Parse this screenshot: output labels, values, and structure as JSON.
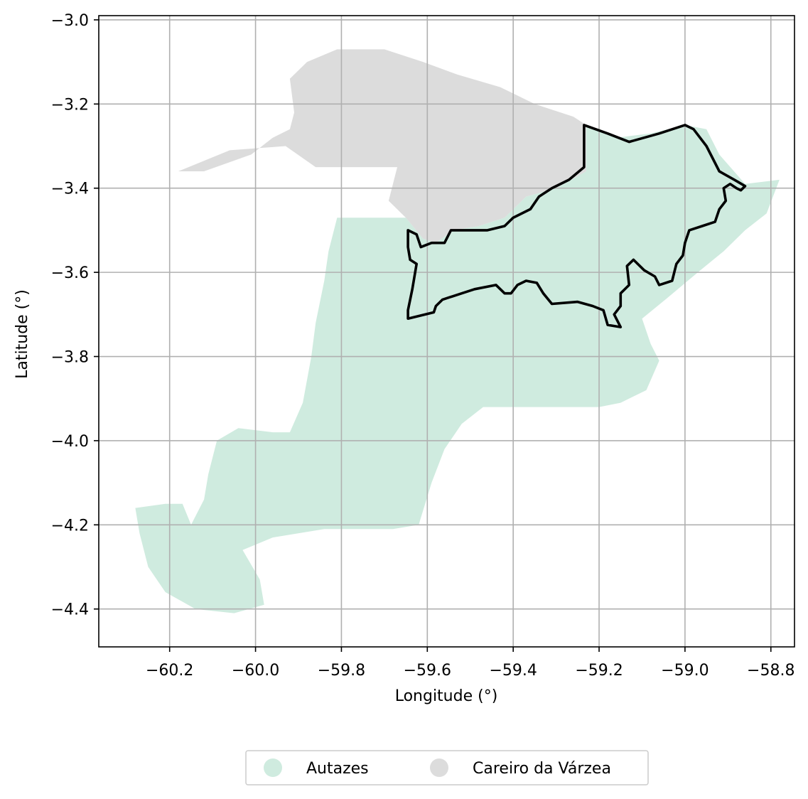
{
  "chart_data": {
    "type": "map",
    "xlabel": "Longitude (°)",
    "ylabel": "Latitude (°)",
    "xlim": [
      -60.365,
      -58.745
    ],
    "ylim": [
      -4.49,
      -2.99
    ],
    "xticks": [
      -60.2,
      -60.0,
      -59.8,
      -59.6,
      -59.4,
      -59.2,
      -59.0,
      -58.8
    ],
    "yticks": [
      -3.0,
      -3.2,
      -3.4,
      -3.6,
      -3.8,
      -4.0,
      -4.2,
      -4.4
    ],
    "xtick_labels": [
      "−60.2",
      "−60.0",
      "−59.8",
      "−59.6",
      "−59.4",
      "−59.2",
      "−59.0",
      "−58.8"
    ],
    "ytick_labels": [
      "−3.0",
      "−3.2",
      "−3.4",
      "−3.6",
      "−3.8",
      "−4.0",
      "−4.2",
      "−4.4"
    ],
    "grid": true,
    "legend_position": "bottom-center",
    "regions": [
      {
        "name": "Autazes",
        "color": "#cfebdf",
        "coords": [
          [
            -59.65,
            -3.47
          ],
          [
            -59.61,
            -3.52
          ],
          [
            -59.58,
            -3.53
          ],
          [
            -59.54,
            -3.5
          ],
          [
            -59.48,
            -3.49
          ],
          [
            -59.42,
            -3.47
          ],
          [
            -59.37,
            -3.42
          ],
          [
            -59.3,
            -3.4
          ],
          [
            -59.23,
            -3.36
          ],
          [
            -59.23,
            -3.25
          ],
          [
            -59.16,
            -3.28
          ],
          [
            -59.08,
            -3.27
          ],
          [
            -59.0,
            -3.25
          ],
          [
            -58.95,
            -3.26
          ],
          [
            -58.92,
            -3.32
          ],
          [
            -58.86,
            -3.39
          ],
          [
            -58.78,
            -3.38
          ],
          [
            -58.81,
            -3.46
          ],
          [
            -58.86,
            -3.5
          ],
          [
            -58.91,
            -3.55
          ],
          [
            -58.97,
            -3.6
          ],
          [
            -59.04,
            -3.66
          ],
          [
            -59.1,
            -3.71
          ],
          [
            -59.08,
            -3.77
          ],
          [
            -59.06,
            -3.81
          ],
          [
            -59.09,
            -3.88
          ],
          [
            -59.15,
            -3.91
          ],
          [
            -59.2,
            -3.92
          ],
          [
            -59.34,
            -3.92
          ],
          [
            -59.47,
            -3.92
          ],
          [
            -59.52,
            -3.96
          ],
          [
            -59.56,
            -4.02
          ],
          [
            -59.59,
            -4.1
          ],
          [
            -59.62,
            -4.2
          ],
          [
            -59.68,
            -4.21
          ],
          [
            -59.84,
            -4.21
          ],
          [
            -59.96,
            -4.23
          ],
          [
            -60.03,
            -4.26
          ],
          [
            -59.99,
            -4.33
          ],
          [
            -59.98,
            -4.39
          ],
          [
            -60.05,
            -4.41
          ],
          [
            -60.14,
            -4.4
          ],
          [
            -60.21,
            -4.36
          ],
          [
            -60.25,
            -4.3
          ],
          [
            -60.27,
            -4.22
          ],
          [
            -60.28,
            -4.16
          ],
          [
            -60.21,
            -4.15
          ],
          [
            -60.17,
            -4.15
          ],
          [
            -60.15,
            -4.2
          ],
          [
            -60.12,
            -4.14
          ],
          [
            -60.11,
            -4.08
          ],
          [
            -60.09,
            -4.0
          ],
          [
            -60.04,
            -3.97
          ],
          [
            -59.96,
            -3.98
          ],
          [
            -59.92,
            -3.98
          ],
          [
            -59.89,
            -3.91
          ],
          [
            -59.87,
            -3.8
          ],
          [
            -59.86,
            -3.72
          ],
          [
            -59.84,
            -3.62
          ],
          [
            -59.83,
            -3.55
          ],
          [
            -59.81,
            -3.47
          ],
          [
            -59.72,
            -3.47
          ]
        ]
      },
      {
        "name": "Careiro da Várzea",
        "color": "#dcdcdc",
        "coords": [
          [
            -60.18,
            -3.36
          ],
          [
            -60.12,
            -3.36
          ],
          [
            -60.01,
            -3.32
          ],
          [
            -59.96,
            -3.28
          ],
          [
            -59.92,
            -3.26
          ],
          [
            -59.91,
            -3.22
          ],
          [
            -59.92,
            -3.14
          ],
          [
            -59.88,
            -3.1
          ],
          [
            -59.81,
            -3.07
          ],
          [
            -59.7,
            -3.07
          ],
          [
            -59.61,
            -3.1
          ],
          [
            -59.53,
            -3.13
          ],
          [
            -59.43,
            -3.16
          ],
          [
            -59.35,
            -3.2
          ],
          [
            -59.26,
            -3.23
          ],
          [
            -59.23,
            -3.25
          ],
          [
            -59.23,
            -3.36
          ],
          [
            -59.3,
            -3.4
          ],
          [
            -59.37,
            -3.42
          ],
          [
            -59.42,
            -3.47
          ],
          [
            -59.48,
            -3.49
          ],
          [
            -59.54,
            -3.5
          ],
          [
            -59.58,
            -3.53
          ],
          [
            -59.61,
            -3.52
          ],
          [
            -59.65,
            -3.47
          ],
          [
            -59.69,
            -3.43
          ],
          [
            -59.67,
            -3.35
          ],
          [
            -59.74,
            -3.35
          ],
          [
            -59.86,
            -3.35
          ],
          [
            -59.93,
            -3.3
          ],
          [
            -60.06,
            -3.31
          ]
        ]
      }
    ],
    "highlight_outline": {
      "color": "#000000",
      "coords": [
        [
          -59.645,
          -3.5
        ],
        [
          -59.625,
          -3.51
        ],
        [
          -59.615,
          -3.54
        ],
        [
          -59.59,
          -3.53
        ],
        [
          -59.56,
          -3.53
        ],
        [
          -59.545,
          -3.5
        ],
        [
          -59.5,
          -3.5
        ],
        [
          -59.46,
          -3.5
        ],
        [
          -59.42,
          -3.49
        ],
        [
          -59.4,
          -3.47
        ],
        [
          -59.36,
          -3.45
        ],
        [
          -59.34,
          -3.42
        ],
        [
          -59.31,
          -3.4
        ],
        [
          -59.27,
          -3.38
        ],
        [
          -59.235,
          -3.35
        ],
        [
          -59.235,
          -3.25
        ],
        [
          -59.18,
          -3.27
        ],
        [
          -59.13,
          -3.29
        ],
        [
          -59.06,
          -3.27
        ],
        [
          -59.0,
          -3.25
        ],
        [
          -58.98,
          -3.26
        ],
        [
          -58.95,
          -3.3
        ],
        [
          -58.92,
          -3.36
        ],
        [
          -58.885,
          -3.38
        ],
        [
          -58.86,
          -3.395
        ],
        [
          -58.87,
          -3.405
        ],
        [
          -58.88,
          -3.4
        ],
        [
          -58.895,
          -3.39
        ],
        [
          -58.91,
          -3.4
        ],
        [
          -58.905,
          -3.43
        ],
        [
          -58.92,
          -3.45
        ],
        [
          -58.93,
          -3.48
        ],
        [
          -58.96,
          -3.49
        ],
        [
          -58.99,
          -3.5
        ],
        [
          -59.0,
          -3.53
        ],
        [
          -59.005,
          -3.56
        ],
        [
          -59.02,
          -3.58
        ],
        [
          -59.03,
          -3.62
        ],
        [
          -59.06,
          -3.63
        ],
        [
          -59.07,
          -3.61
        ],
        [
          -59.095,
          -3.595
        ],
        [
          -59.12,
          -3.57
        ],
        [
          -59.135,
          -3.585
        ],
        [
          -59.13,
          -3.63
        ],
        [
          -59.15,
          -3.65
        ],
        [
          -59.15,
          -3.68
        ],
        [
          -59.165,
          -3.7
        ],
        [
          -59.15,
          -3.73
        ],
        [
          -59.18,
          -3.725
        ],
        [
          -59.19,
          -3.69
        ],
        [
          -59.215,
          -3.68
        ],
        [
          -59.25,
          -3.67
        ],
        [
          -59.31,
          -3.675
        ],
        [
          -59.33,
          -3.65
        ],
        [
          -59.345,
          -3.625
        ],
        [
          -59.37,
          -3.62
        ],
        [
          -59.39,
          -3.63
        ],
        [
          -59.405,
          -3.65
        ],
        [
          -59.42,
          -3.65
        ],
        [
          -59.44,
          -3.63
        ],
        [
          -59.49,
          -3.64
        ],
        [
          -59.52,
          -3.65
        ],
        [
          -59.55,
          -3.66
        ],
        [
          -59.565,
          -3.665
        ],
        [
          -59.58,
          -3.68
        ],
        [
          -59.585,
          -3.695
        ],
        [
          -59.645,
          -3.71
        ],
        [
          -59.645,
          -3.69
        ],
        [
          -59.635,
          -3.64
        ],
        [
          -59.625,
          -3.58
        ],
        [
          -59.64,
          -3.57
        ],
        [
          -59.645,
          -3.54
        ]
      ]
    },
    "legend": [
      {
        "label": "Autazes",
        "color": "#cfebdf"
      },
      {
        "label": "Careiro da Várzea",
        "color": "#dcdcdc"
      }
    ]
  }
}
